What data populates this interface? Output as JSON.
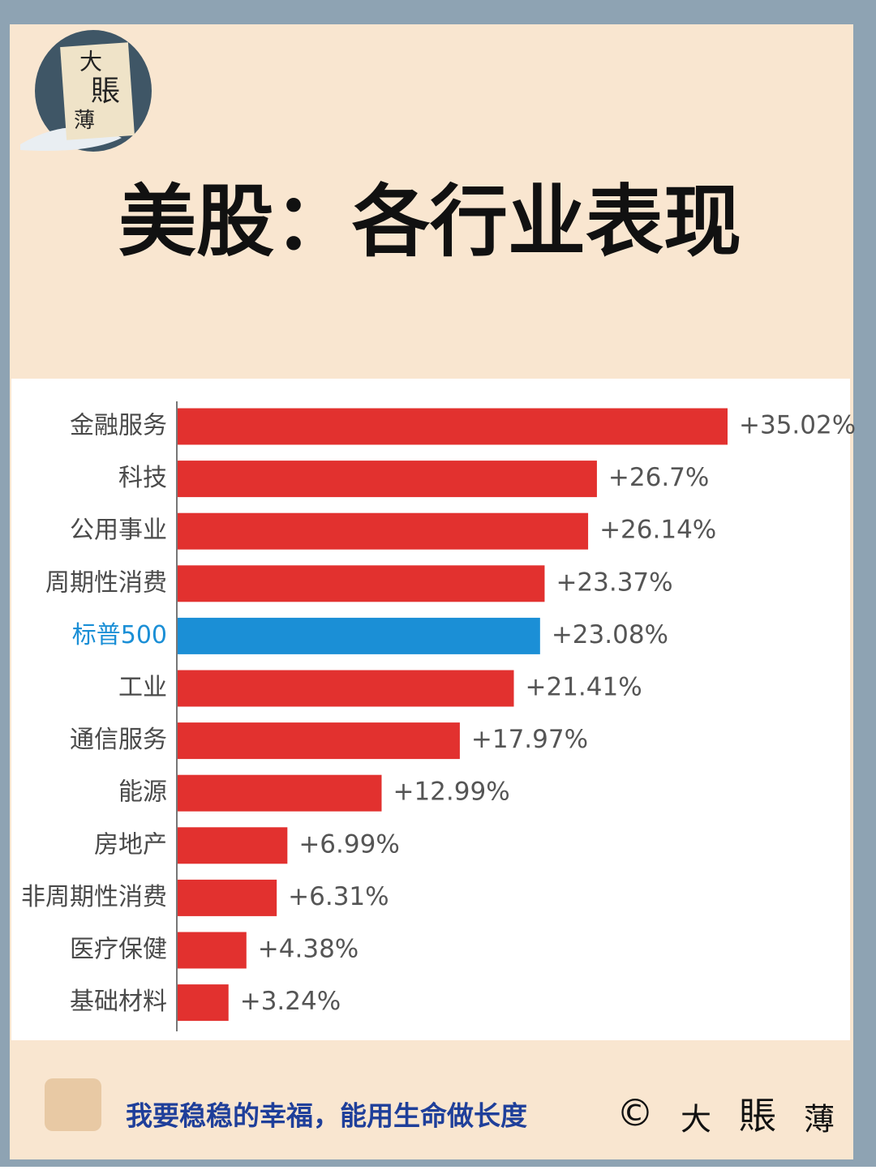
{
  "chart_data": {
    "type": "hbar",
    "title": "美股：各行业表现",
    "categories": [
      "金融服务",
      "科技",
      "公用事业",
      "周期性消费",
      "标普500",
      "工业",
      "通信服务",
      "能源",
      "房地产",
      "非周期性消费",
      "医疗保健",
      "基础材料"
    ],
    "values": [
      35.02,
      26.7,
      26.14,
      23.37,
      23.08,
      21.41,
      17.97,
      12.99,
      6.99,
      6.31,
      4.38,
      3.24
    ],
    "value_labels": [
      "+35.02%",
      "+26.7%",
      "+26.14%",
      "+23.37%",
      "+23.08%",
      "+21.41%",
      "+17.97%",
      "+12.99%",
      "+6.99%",
      "+6.31%",
      "+4.38%",
      "+3.24%"
    ],
    "colors": [
      "#e2312f",
      "#e2312f",
      "#e2312f",
      "#e2312f",
      "#1b8fd6",
      "#e2312f",
      "#e2312f",
      "#e2312f",
      "#e2312f",
      "#e2312f",
      "#e2312f",
      "#e2312f"
    ],
    "label_colors": [
      "#4a4a4a",
      "#4a4a4a",
      "#4a4a4a",
      "#4a4a4a",
      "#1b8fd6",
      "#4a4a4a",
      "#4a4a4a",
      "#4a4a4a",
      "#4a4a4a",
      "#4a4a4a",
      "#4a4a4a",
      "#4a4a4a"
    ]
  },
  "logo": {
    "chars": [
      "大",
      "賬",
      "薄"
    ]
  },
  "footer": {
    "slogan": "我要稳稳的幸福，能用生命做长度",
    "copyright": "©",
    "signature": [
      "大",
      "賬",
      "薄"
    ]
  }
}
